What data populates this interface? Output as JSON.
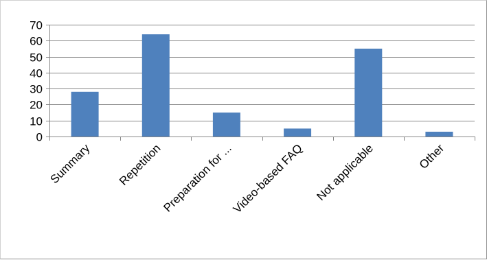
{
  "chart_data": {
    "type": "bar",
    "categories": [
      "Summary",
      "Repetition",
      "Preparation for ...",
      "Video-based FAQ",
      "Not applicable",
      "Other"
    ],
    "series": [
      {
        "values": [
          28,
          64,
          15,
          5,
          55,
          3
        ]
      }
    ],
    "title": "",
    "xlabel": "",
    "ylabel": "",
    "ylim": [
      0,
      70
    ],
    "yticks": [
      0,
      10,
      20,
      30,
      40,
      50,
      60,
      70
    ],
    "grid": true,
    "legend": "none",
    "colors": {
      "bar": "#4f81bd",
      "grid": "#868686",
      "axis": "#868686"
    }
  }
}
